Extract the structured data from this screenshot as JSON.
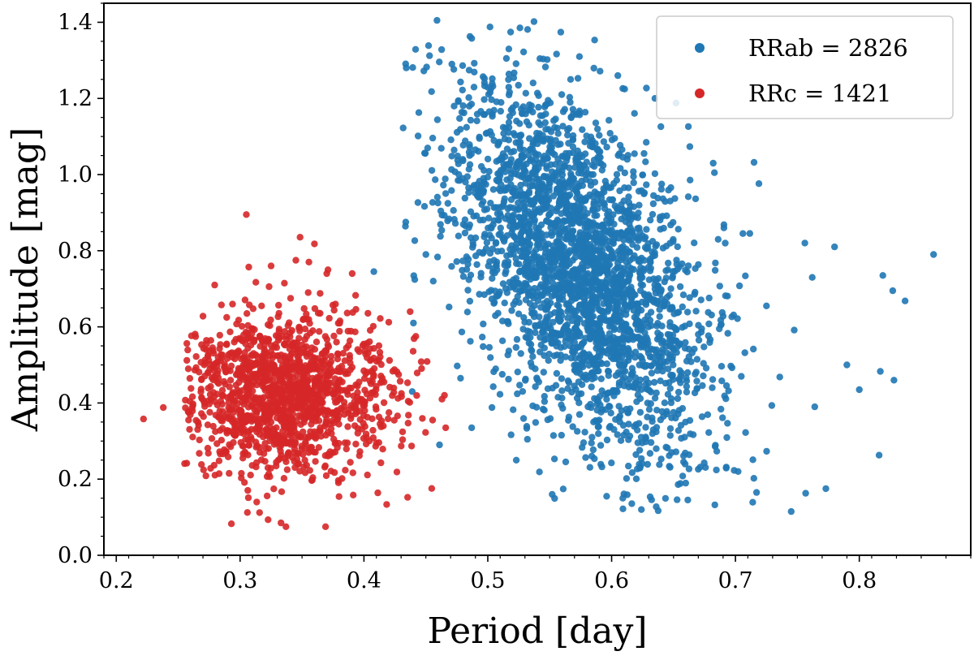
{
  "chart_data": {
    "type": "scatter",
    "title": "",
    "xlabel": "Period [day]",
    "ylabel": "Amplitude [mag]",
    "xlim": [
      0.19,
      0.89
    ],
    "ylim": [
      0.0,
      1.45
    ],
    "xticks": [
      0.2,
      0.3,
      0.4,
      0.5,
      0.6,
      0.7,
      0.8
    ],
    "xtick_labels": [
      "0.2",
      "0.3",
      "0.4",
      "0.5",
      "0.6",
      "0.7",
      "0.8"
    ],
    "yticks": [
      0.0,
      0.2,
      0.4,
      0.6,
      0.8,
      1.0,
      1.2,
      1.4
    ],
    "ytick_labels": [
      "0.0",
      "0.2",
      "0.4",
      "0.6",
      "0.8",
      "1.0",
      "1.2",
      "1.4"
    ],
    "grid": false,
    "legend_position": "top-right",
    "series": [
      {
        "name": "RRab",
        "legend_label": "RRab = 2826",
        "count": 2826,
        "color": "#1f77b4",
        "cloud": {
          "center": [
            0.575,
            0.75
          ],
          "cov": [
            [
              0.0025,
              -0.0062
            ],
            [
              -0.0062,
              0.057
            ]
          ],
          "seed": 11,
          "period_range": [
            0.43,
            0.87
          ],
          "amplitude_range": [
            0.1,
            1.41
          ]
        },
        "points": [
          [
            0.459,
            1.405
          ],
          [
            0.517,
            1.33
          ],
          [
            0.515,
            1.305
          ],
          [
            0.548,
            1.302
          ],
          [
            0.574,
            1.31
          ],
          [
            0.471,
            1.29
          ],
          [
            0.609,
            1.226
          ],
          [
            0.635,
            1.2
          ],
          [
            0.652,
            1.188
          ],
          [
            0.662,
            1.126
          ],
          [
            0.682,
            1.03
          ],
          [
            0.715,
            1.032
          ],
          [
            0.683,
            1.005
          ],
          [
            0.605,
            1.26
          ],
          [
            0.86,
            0.79
          ],
          [
            0.837,
            0.668
          ],
          [
            0.819,
            0.735
          ],
          [
            0.827,
            0.695
          ],
          [
            0.828,
            0.46
          ],
          [
            0.817,
            0.483
          ],
          [
            0.816,
            0.263
          ],
          [
            0.8,
            0.435
          ],
          [
            0.79,
            0.5
          ],
          [
            0.78,
            0.81
          ],
          [
            0.762,
            0.73
          ],
          [
            0.756,
            0.82
          ],
          [
            0.745,
            0.115
          ],
          [
            0.725,
            0.655
          ],
          [
            0.706,
            0.845
          ],
          [
            0.686,
            0.83
          ],
          [
            0.764,
            0.39
          ],
          [
            0.773,
            0.175
          ],
          [
            0.717,
            0.165
          ],
          [
            0.636,
            0.28
          ],
          [
            0.624,
            0.12
          ],
          [
            0.609,
            0.15
          ],
          [
            0.585,
            0.61
          ],
          [
            0.596,
            0.155
          ],
          [
            0.552,
            0.16
          ],
          [
            0.523,
            0.25
          ],
          [
            0.408,
            0.745
          ],
          [
            0.456,
            0.72
          ],
          [
            0.45,
            0.79
          ],
          [
            0.44,
            0.61
          ],
          [
            0.487,
            0.335
          ],
          [
            0.439,
            0.43
          ],
          [
            0.461,
            0.29
          ],
          [
            0.478,
            0.465
          ],
          [
            0.535,
            0.54
          ],
          [
            0.532,
            0.75
          ]
        ]
      },
      {
        "name": "RRc",
        "legend_label": "RRc = 1421",
        "count": 1421,
        "color": "#d62728",
        "cloud": {
          "center": [
            0.335,
            0.42
          ],
          "cov": [
            [
              0.0018,
              0.0
            ],
            [
              0.0,
              0.0105
            ]
          ],
          "seed": 29,
          "period_range": [
            0.255,
            0.47
          ],
          "amplitude_range": [
            0.07,
            0.9
          ]
        },
        "points": [
          [
            0.222,
            0.358
          ],
          [
            0.238,
            0.388
          ],
          [
            0.305,
            0.895
          ],
          [
            0.36,
            0.818
          ],
          [
            0.37,
            0.74
          ],
          [
            0.307,
            0.757
          ],
          [
            0.325,
            0.76
          ],
          [
            0.345,
            0.775
          ],
          [
            0.355,
            0.69
          ],
          [
            0.27,
            0.628
          ],
          [
            0.337,
            0.075
          ],
          [
            0.369,
            0.075
          ],
          [
            0.333,
            0.085
          ],
          [
            0.465,
            0.42
          ],
          [
            0.466,
            0.335
          ],
          [
            0.463,
            0.41
          ],
          [
            0.451,
            0.509
          ],
          [
            0.443,
            0.479
          ],
          [
            0.413,
            0.345
          ],
          [
            0.358,
            0.545
          ]
        ]
      }
    ]
  }
}
